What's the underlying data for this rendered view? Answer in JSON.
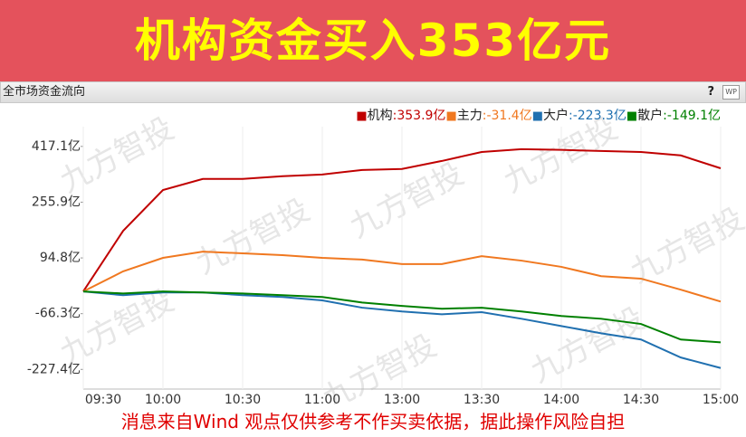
{
  "banner": "机构资金买入353亿元",
  "panel": {
    "title": "全市场资金流向",
    "help": "?",
    "icon": "WP"
  },
  "watermark": "九方智投",
  "footer": "消息来自Wind  观点仅供参考不作买卖依据，据此操作风险自担",
  "chart_data": {
    "type": "line",
    "categories": [
      "09:30",
      null,
      "10:00",
      null,
      "10:30",
      null,
      "11:00",
      null,
      "13:00",
      null,
      "13:30",
      null,
      "14:00",
      null,
      "14:30",
      null,
      "15:00"
    ],
    "series": [
      {
        "name": "机构",
        "value_label": ":353.9亿",
        "color": "#c00000",
        "values": [
          -2,
          173,
          291,
          323,
          323,
          331,
          336,
          349,
          352,
          375,
          401,
          409,
          407,
          404,
          401,
          391,
          353.9
        ]
      },
      {
        "name": "主力",
        "value_label": ":-31.4亿",
        "color": "#f07820",
        "values": [
          -2,
          56,
          95,
          113,
          108,
          103,
          95,
          90,
          77,
          77,
          100,
          87,
          69,
          42,
          35,
          3,
          -31.4
        ]
      },
      {
        "name": "大户",
        "value_label": ":-223.3亿",
        "color": "#2070b0",
        "values": [
          -2,
          -13,
          -5,
          -5,
          -13,
          -18,
          -28,
          -49,
          -60,
          -68,
          -62,
          -81,
          -102,
          -123,
          -141,
          -193,
          -223.3
        ]
      },
      {
        "name": "散户",
        "value_label": ":-149.1亿",
        "color": "#008000",
        "values": [
          -2,
          -8,
          -2,
          -5,
          -8,
          -13,
          -18,
          -34,
          -44,
          -52,
          -49,
          -60,
          -73,
          -81,
          -96,
          -141,
          -149.1
        ]
      }
    ],
    "ylim": [
      -258,
      448
    ],
    "yticks": [
      {
        "value": 417.1,
        "label": "417.1亿"
      },
      {
        "value": 255.9,
        "label": "255.9亿"
      },
      {
        "value": 94.8,
        "label": "94.8亿"
      },
      {
        "value": -66.3,
        "label": "-66.3亿"
      },
      {
        "value": -227.4,
        "label": "-227.4亿"
      }
    ],
    "grid": true
  }
}
